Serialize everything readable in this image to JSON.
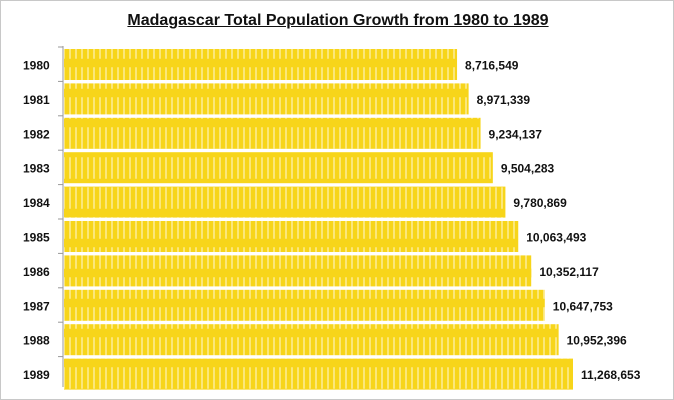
{
  "chart_data": {
    "type": "bar",
    "orientation": "horizontal",
    "title": "Madagascar  Total Population Growth from 1980 to 1989",
    "categories": [
      "1980",
      "1981",
      "1982",
      "1983",
      "1984",
      "1985",
      "1986",
      "1987",
      "1988",
      "1989"
    ],
    "values": [
      8716549,
      8971339,
      9234137,
      9504283,
      9780869,
      10063493,
      10352117,
      10647753,
      10952396,
      11268653
    ],
    "data_labels": [
      "8,716,549",
      "8,971,339",
      "9,234,137",
      "9,504,283",
      "9,780,869",
      "10,063,493",
      "10,352,117",
      "10,647,753",
      "10,952,396",
      "11,268,653"
    ],
    "xlabel": "",
    "ylabel": "",
    "grid": false,
    "bar_color": "#f7d51a"
  }
}
